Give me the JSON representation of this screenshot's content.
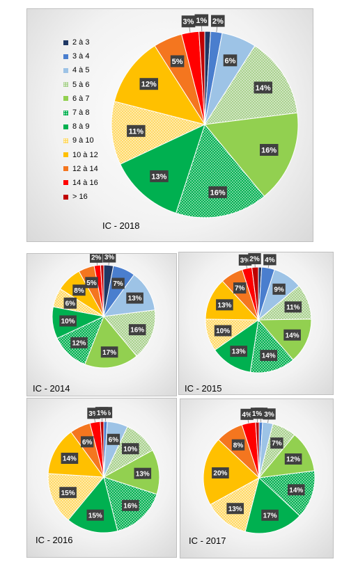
{
  "legend": [
    {
      "label": "2 à 3",
      "color": "#1f3864",
      "pattern": "solid"
    },
    {
      "label": "3 à 4",
      "color": "#4a7ece",
      "pattern": "solid"
    },
    {
      "label": "4 à 5",
      "color": "#9dc3e6",
      "pattern": "solid"
    },
    {
      "label": "5 à 6",
      "color": "#a9d18e",
      "pattern": "dotted"
    },
    {
      "label": "6 à 7",
      "color": "#92d050",
      "pattern": "solid"
    },
    {
      "label": "7 à 8",
      "color": "#00b050",
      "pattern": "dotted"
    },
    {
      "label": "8 à 9",
      "color": "#00b050",
      "pattern": "solid"
    },
    {
      "label": "9 à 10",
      "color": "#ffd966",
      "pattern": "dotted"
    },
    {
      "label": "10 à 12",
      "color": "#ffc000",
      "pattern": "solid"
    },
    {
      "label": "12 à 14",
      "color": "#f4761f",
      "pattern": "solid"
    },
    {
      "label": "14 à 16",
      "color": "#ff0000",
      "pattern": "solid"
    },
    {
      "label": "> 16",
      "color": "#c00000",
      "pattern": "solid"
    }
  ],
  "chart_data": [
    {
      "type": "pie",
      "title": "IC - 2018",
      "categories": [
        "2 à 3",
        "3 à 4",
        "4 à 5",
        "5 à 6",
        "6 à 7",
        "7 à 8",
        "8 à 9",
        "9 à 10",
        "10 à 12",
        "12 à 14",
        "14 à 16",
        "> 16"
      ],
      "values": [
        1,
        2,
        6,
        14,
        16,
        16,
        13,
        11,
        12,
        5,
        3,
        1
      ],
      "labels": [
        "",
        "2%",
        "6%",
        "14%",
        "16%",
        "16%",
        "13%",
        "11%",
        "12%",
        "5%",
        "3%",
        "1%"
      ]
    },
    {
      "type": "pie",
      "title": "IC - 2014",
      "categories": [
        "2 à 3",
        "3 à 4",
        "4 à 5",
        "5 à 6",
        "6 à 7",
        "7 à 8",
        "8 à 9",
        "9 à 10",
        "10 à 12",
        "12 à 14",
        "14 à 16",
        "> 16"
      ],
      "values": [
        3,
        7,
        13,
        16,
        17,
        12,
        10,
        6,
        8,
        5,
        2,
        1
      ],
      "labels": [
        "3%",
        "7%",
        "13%",
        "16%",
        "17%",
        "12%",
        "10%",
        "6%",
        "8%",
        "5%",
        "2%",
        ""
      ]
    },
    {
      "type": "pie",
      "title": "IC - 2015",
      "categories": [
        "2 à 3",
        "3 à 4",
        "4 à 5",
        "5 à 6",
        "6 à 7",
        "7 à 8",
        "8 à 9",
        "9 à 10",
        "10 à 12",
        "12 à 14",
        "14 à 16",
        "> 16"
      ],
      "values": [
        1,
        4,
        9,
        11,
        14,
        14,
        13,
        10,
        13,
        7,
        3,
        2
      ],
      "labels": [
        "",
        "4%",
        "9%",
        "11%",
        "14%",
        "14%",
        "13%",
        "10%",
        "13%",
        "7%",
        "3%",
        "2%"
      ]
    },
    {
      "type": "pie",
      "title": "IC - 2016",
      "categories": [
        "2 à 3",
        "3 à 4",
        "4 à 5",
        "5 à 6",
        "6 à 7",
        "7 à 8",
        "8 à 9",
        "9 à 10",
        "10 à 12",
        "12 à 14",
        "14 à 16",
        "> 16"
      ],
      "values": [
        0,
        1,
        6,
        10,
        13,
        16,
        15,
        15,
        14,
        6,
        3,
        1
      ],
      "labels": [
        "",
        "1%",
        "6%",
        "10%",
        "13%",
        "16%",
        "15%",
        "15%",
        "14%",
        "6%",
        "3%",
        "1%"
      ]
    },
    {
      "type": "pie",
      "title": "IC - 2017",
      "categories": [
        "2 à 3",
        "3 à 4",
        "4 à 5",
        "5 à 6",
        "6 à 7",
        "7 à 8",
        "8 à 9",
        "9 à 10",
        "10 à 12",
        "12 à 14",
        "14 à 16",
        "> 16"
      ],
      "values": [
        0,
        1,
        3,
        7,
        12,
        14,
        17,
        13,
        20,
        8,
        4,
        1
      ],
      "labels": [
        "",
        "1%",
        "3%",
        "7%",
        "12%",
        "14%",
        "17%",
        "13%",
        "20%",
        "8%",
        "4%",
        "1%"
      ]
    }
  ]
}
